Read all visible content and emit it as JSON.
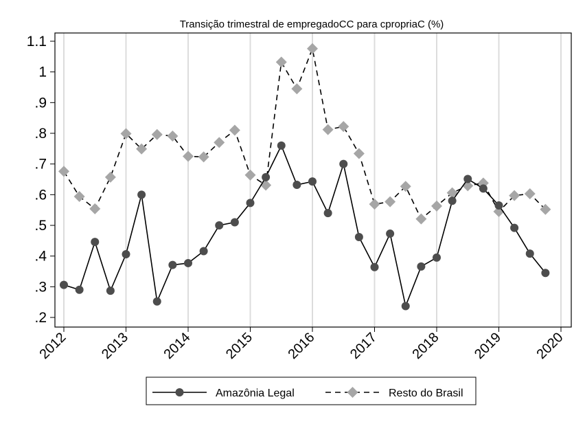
{
  "chart_data": {
    "type": "line",
    "title": "Transição trimestral de empregadoCC para cpropriaC (%)",
    "xlabel": "",
    "ylabel": "",
    "xlim": [
      2012,
      2020
    ],
    "ylim": [
      0.18,
      1.12
    ],
    "x_ticks": [
      "2012",
      "2013",
      "2014",
      "2015",
      "2016",
      "2017",
      "2018",
      "2019",
      "2020"
    ],
    "y_ticks": [
      ".2",
      ".3",
      ".4",
      ".5",
      ".6",
      ".7",
      ".8",
      ".9",
      "1",
      "1.1"
    ],
    "grid": "vertical",
    "legend_position": "bottom",
    "x": [
      2012.0,
      2012.25,
      2012.5,
      2012.75,
      2013.0,
      2013.25,
      2013.5,
      2013.75,
      2014.0,
      2014.25,
      2014.5,
      2014.75,
      2015.0,
      2015.25,
      2015.5,
      2015.75,
      2016.0,
      2016.25,
      2016.5,
      2016.75,
      2017.0,
      2017.25,
      2017.5,
      2017.75,
      2018.0,
      2018.25,
      2018.5,
      2018.75,
      2019.0,
      2019.25,
      2019.5,
      2019.75
    ],
    "series": [
      {
        "name": "Amazônia Legal",
        "color": "#4d4d4d",
        "marker": "circle",
        "line": "solid",
        "values": [
          0.306,
          0.29,
          0.446,
          0.287,
          0.406,
          0.6,
          0.252,
          0.371,
          0.377,
          0.416,
          0.5,
          0.51,
          0.573,
          0.657,
          0.76,
          0.632,
          0.643,
          0.54,
          0.7,
          0.462,
          0.364,
          0.473,
          0.237,
          0.366,
          0.395,
          0.58,
          0.651,
          0.62,
          0.565,
          0.492,
          0.408,
          0.345
        ]
      },
      {
        "name": "Resto do Brasil",
        "color": "#a6a6a6",
        "marker": "diamond",
        "line": "dashed",
        "values": [
          0.676,
          0.594,
          0.554,
          0.657,
          0.799,
          0.749,
          0.796,
          0.791,
          0.725,
          0.723,
          0.77,
          0.81,
          0.664,
          0.631,
          1.032,
          0.945,
          1.076,
          0.812,
          0.822,
          0.734,
          0.569,
          0.577,
          0.627,
          0.521,
          0.563,
          0.606,
          0.629,
          0.638,
          0.545,
          0.597,
          0.603,
          0.552
        ]
      }
    ]
  }
}
